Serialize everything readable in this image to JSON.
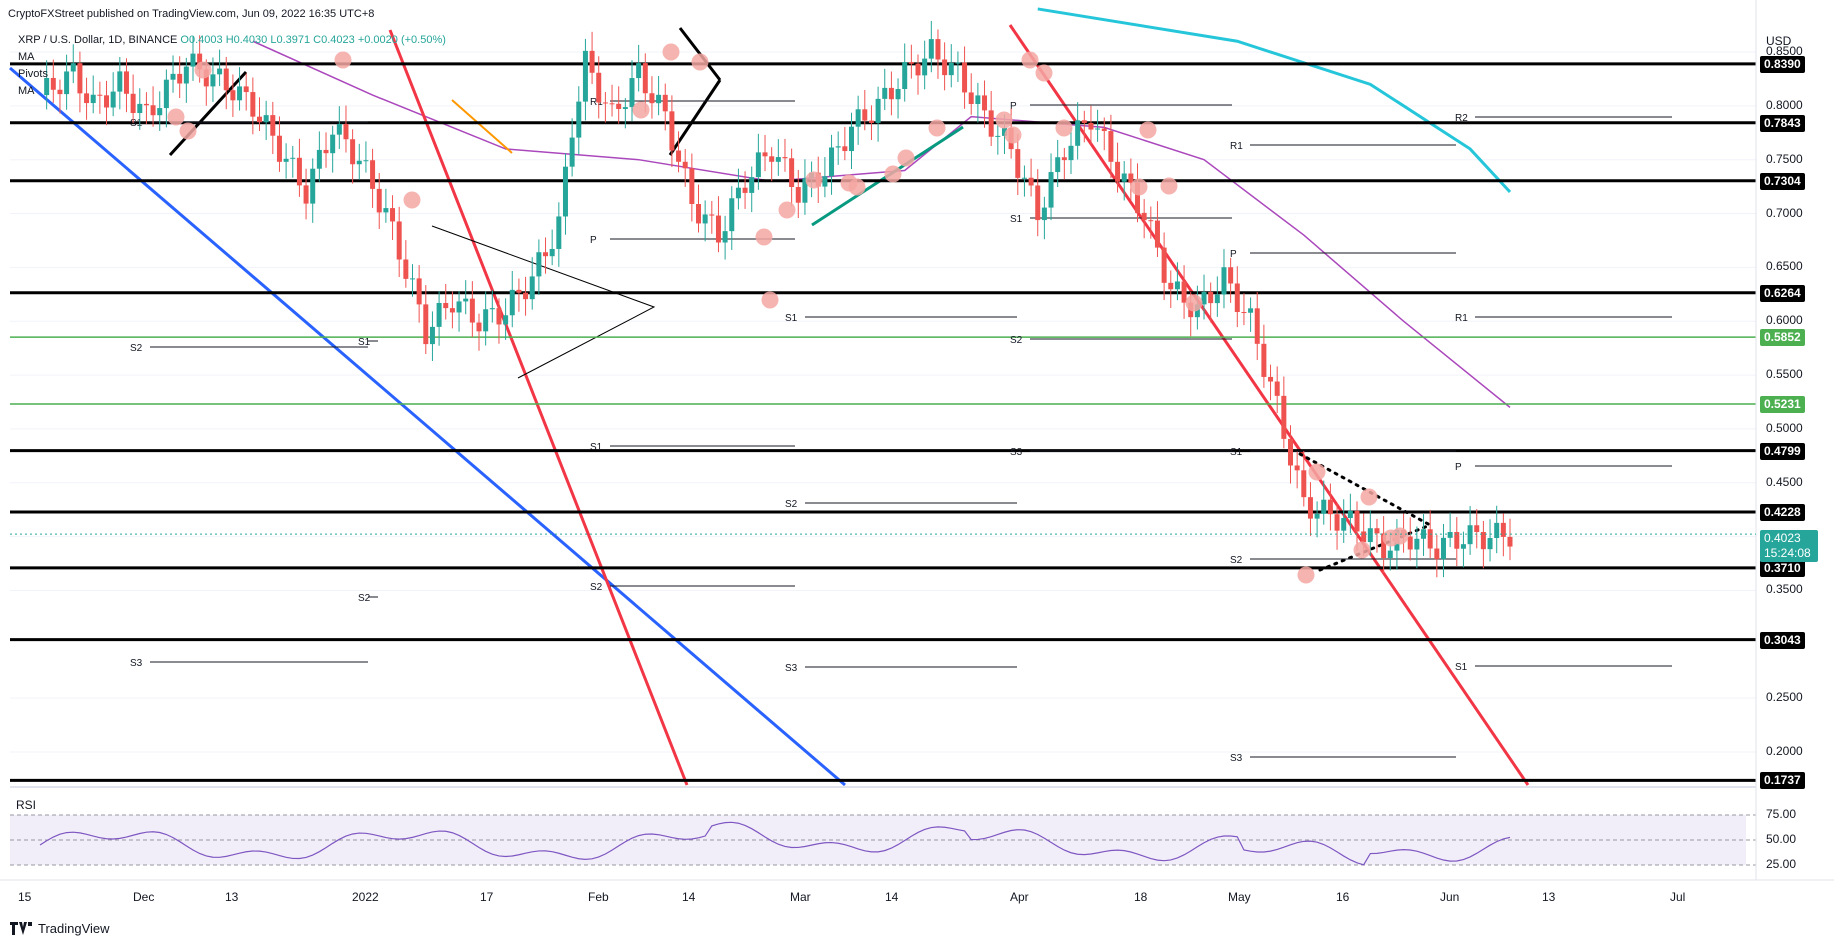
{
  "header": {
    "publisher": "CryptoFXStreet published on TradingView.com, Jun 09, 2022 16:35 UTC+8",
    "symbol": "XRP / U.S. Dollar, 1D, BINANCE",
    "ohlc": {
      "open": "O0.4003",
      "high": "H0.4030",
      "low": "L0.3971",
      "close": "C0.4023",
      "change": "+0.0020 (+0.50%)"
    },
    "indicators": [
      "MA",
      "Pivots",
      "MA"
    ]
  },
  "currency": "USD",
  "chart_data": {
    "type": "line",
    "title": "XRP / U.S. Dollar, 1D, BINANCE",
    "xlabel": "",
    "ylabel": "USD",
    "ylim": [
      0.17,
      0.88
    ],
    "x_ticks": [
      "15",
      "Dec",
      "13",
      "2022",
      "17",
      "Feb",
      "14",
      "Mar",
      "14",
      "Apr",
      "18",
      "May",
      "16",
      "Jun",
      "13",
      "Jul"
    ],
    "y_ticks": [
      0.85,
      0.8,
      0.75,
      0.7,
      0.65,
      0.6,
      0.55,
      0.5,
      0.45,
      0.4,
      0.35,
      0.25,
      0.2
    ],
    "series": [
      {
        "values": [
          [
            0,
            0.81
          ],
          [
            5,
            0.83
          ],
          [
            8,
            0.8
          ],
          [
            12,
            0.82
          ],
          [
            16,
            0.79
          ],
          [
            22,
            0.84
          ],
          [
            28,
            0.82
          ],
          [
            32,
            0.8
          ],
          [
            36,
            0.76
          ],
          [
            40,
            0.72
          ],
          [
            44,
            0.78
          ],
          [
            48,
            0.75
          ],
          [
            52,
            0.7
          ],
          [
            56,
            0.63
          ],
          [
            58,
            0.59
          ],
          [
            62,
            0.62
          ],
          [
            66,
            0.6
          ],
          [
            70,
            0.61
          ],
          [
            74,
            0.64
          ],
          [
            78,
            0.69
          ],
          [
            80,
            0.78
          ],
          [
            82,
            0.84
          ],
          [
            86,
            0.79
          ],
          [
            90,
            0.83
          ],
          [
            94,
            0.79
          ],
          [
            98,
            0.71
          ],
          [
            102,
            0.68
          ],
          [
            106,
            0.73
          ],
          [
            110,
            0.76
          ],
          [
            114,
            0.72
          ],
          [
            118,
            0.74
          ],
          [
            122,
            0.78
          ],
          [
            126,
            0.8
          ],
          [
            130,
            0.83
          ],
          [
            134,
            0.85
          ],
          [
            138,
            0.83
          ],
          [
            142,
            0.79
          ],
          [
            146,
            0.76
          ],
          [
            150,
            0.7
          ],
          [
            154,
            0.76
          ],
          [
            158,
            0.79
          ],
          [
            162,
            0.74
          ],
          [
            166,
            0.7
          ],
          [
            170,
            0.63
          ],
          [
            174,
            0.61
          ],
          [
            178,
            0.64
          ],
          [
            182,
            0.6
          ],
          [
            186,
            0.52
          ],
          [
            190,
            0.43
          ],
          [
            194,
            0.42
          ],
          [
            198,
            0.41
          ],
          [
            202,
            0.39
          ],
          [
            206,
            0.4
          ],
          [
            210,
            0.39
          ],
          [
            214,
            0.4
          ],
          [
            218,
            0.4
          ],
          [
            221,
            0.4023
          ]
        ],
        "color": "#26a69a"
      }
    ],
    "moving_averages": [
      {
        "color": "#ab47bc",
        "values": [
          [
            32,
            0.86
          ],
          [
            50,
            0.81
          ],
          [
            70,
            0.76
          ],
          [
            90,
            0.75
          ],
          [
            110,
            0.73
          ],
          [
            130,
            0.74
          ],
          [
            140,
            0.79
          ],
          [
            160,
            0.78
          ],
          [
            175,
            0.75
          ],
          [
            190,
            0.68
          ],
          [
            205,
            0.6
          ],
          [
            221,
            0.52
          ]
        ]
      },
      {
        "color": "#26c6da",
        "values": [
          [
            150,
            0.89
          ],
          [
            180,
            0.86
          ],
          [
            200,
            0.82
          ],
          [
            215,
            0.76
          ],
          [
            221,
            0.72
          ]
        ]
      }
    ],
    "levels": [
      {
        "value": 0.839,
        "label": "0.8390",
        "color": "#000000"
      },
      {
        "value": 0.7843,
        "label": "0.7843",
        "color": "#000000"
      },
      {
        "value": 0.7304,
        "label": "0.7304",
        "color": "#000000"
      },
      {
        "value": 0.6264,
        "label": "0.6264",
        "color": "#000000"
      },
      {
        "value": 0.5852,
        "label": "0.5852",
        "color": "#4caf50"
      },
      {
        "value": 0.5231,
        "label": "0.5231",
        "color": "#4caf50"
      },
      {
        "value": 0.4799,
        "label": "0.4799",
        "color": "#000000"
      },
      {
        "value": 0.4228,
        "label": "0.4228",
        "color": "#000000"
      },
      {
        "value": 0.371,
        "label": "0.3710",
        "color": "#000000"
      },
      {
        "value": 0.3043,
        "label": "0.3043",
        "color": "#000000"
      },
      {
        "value": 0.1737,
        "label": "0.1737",
        "color": "#000000"
      }
    ],
    "current_price": {
      "value": 0.4023,
      "label": "0.4023",
      "countdown": "15:24:08"
    },
    "pivot_labels": [
      "S1",
      "S2",
      "S3",
      "R1",
      "R2",
      "P"
    ]
  },
  "rsi": {
    "label": "RSI",
    "y_ticks": [
      "75.00",
      "50.00",
      "25.00"
    ],
    "color": "#7e57c2"
  },
  "footer": {
    "brand": "TradingView"
  }
}
